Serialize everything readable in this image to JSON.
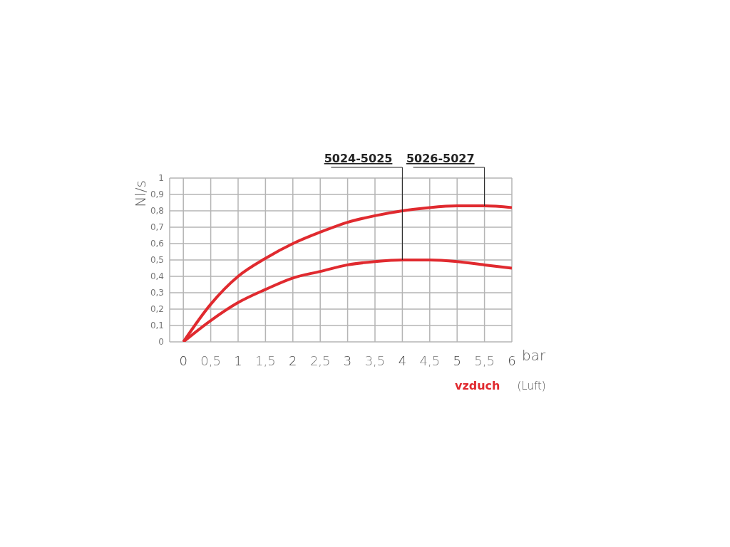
{
  "chart_data": {
    "type": "line",
    "xlabel": "bar",
    "ylabel": "Nl/s",
    "annotations": [
      "vzduch",
      "(Luft)"
    ],
    "x": [
      0,
      0.5,
      1,
      1.5,
      2,
      2.5,
      3,
      3.5,
      4,
      4.5,
      5,
      5.5,
      6
    ],
    "series": [
      {
        "name": "5024-5025",
        "color": "#e02a2f",
        "values": [
          0,
          0.13,
          0.24,
          0.32,
          0.39,
          0.43,
          0.47,
          0.49,
          0.5,
          0.5,
          0.49,
          0.47,
          0.45
        ]
      },
      {
        "name": "5026-5027",
        "color": "#e02a2f",
        "values": [
          0,
          0.23,
          0.4,
          0.51,
          0.6,
          0.67,
          0.73,
          0.77,
          0.8,
          0.82,
          0.83,
          0.83,
          0.82
        ]
      }
    ],
    "xlim": [
      -0.25,
      6
    ],
    "xticks": [
      0,
      {
        "value": 0.5,
        "label": "0,5"
      },
      1,
      {
        "value": 1.5,
        "label": "1,5"
      },
      2,
      {
        "value": 2.5,
        "label": "2,5"
      },
      3,
      {
        "value": 3.5,
        "label": "3,5"
      },
      4,
      {
        "value": 4.5,
        "label": "4,5"
      },
      5,
      {
        "value": 5.5,
        "label": "5,5"
      },
      6
    ],
    "ylim": [
      0,
      1
    ],
    "yticks": [
      0,
      {
        "value": 0.1,
        "label": "0,1"
      },
      {
        "value": 0.2,
        "label": "0,2"
      },
      {
        "value": 0.3,
        "label": "0,3"
      },
      {
        "value": 0.4,
        "label": "0,4"
      },
      {
        "value": 0.5,
        "label": "0,5"
      },
      {
        "value": 0.6,
        "label": "0,6"
      },
      {
        "value": 0.7,
        "label": "0,7"
      },
      {
        "value": 0.8,
        "label": "0,8"
      },
      {
        "value": 0.9,
        "label": "0,9"
      },
      1
    ],
    "grid": true,
    "line_style": "solid"
  }
}
